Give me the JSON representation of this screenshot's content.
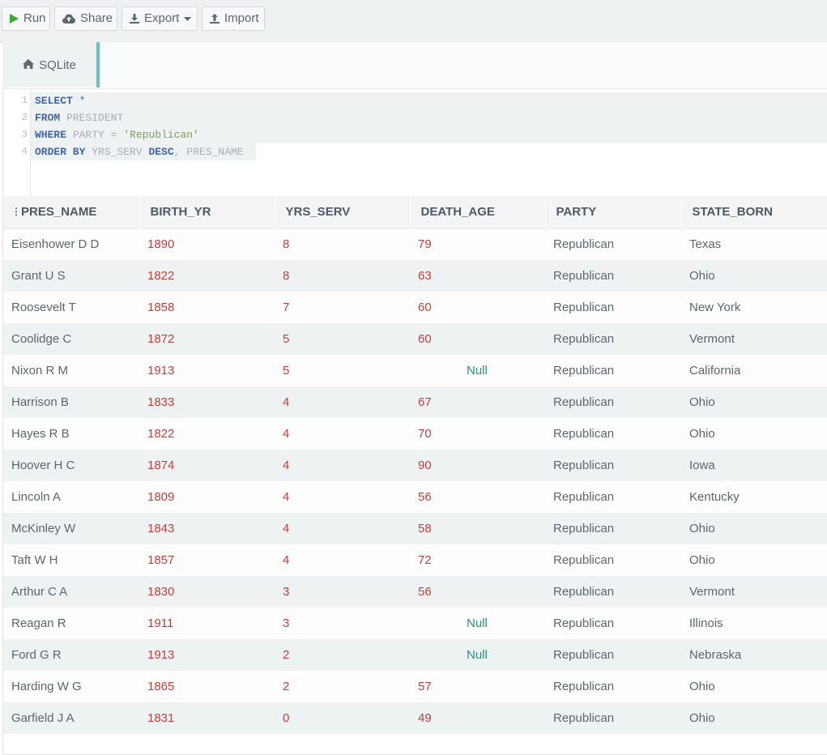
{
  "toolbar": {
    "run_label": "Run",
    "share_label": "Share",
    "export_label": "Export",
    "import_label": "Import"
  },
  "db_tab": {
    "label": "SQLite"
  },
  "editor": {
    "line_numbers": [
      "1",
      "2",
      "3",
      "4"
    ]
  },
  "table": {
    "columns": [
      "PRES_NAME",
      "BIRTH_YR",
      "YRS_SERV",
      "DEATH_AGE",
      "PARTY",
      "STATE_BORN"
    ],
    "rows": [
      [
        "Eisenhower D D",
        "1890",
        "8",
        "79",
        "Republican",
        "Texas"
      ],
      [
        "Grant U S",
        "1822",
        "8",
        "63",
        "Republican",
        "Ohio"
      ],
      [
        "Roosevelt T",
        "1858",
        "7",
        "60",
        "Republican",
        "New York"
      ],
      [
        "Coolidge C",
        "1872",
        "5",
        "60",
        "Republican",
        "Vermont"
      ],
      [
        "Nixon R M",
        "1913",
        "5",
        "Null",
        "Republican",
        "California"
      ],
      [
        "Harrison B",
        "1833",
        "4",
        "67",
        "Republican",
        "Ohio"
      ],
      [
        "Hayes R B",
        "1822",
        "4",
        "70",
        "Republican",
        "Ohio"
      ],
      [
        "Hoover H C",
        "1874",
        "4",
        "90",
        "Republican",
        "Iowa"
      ],
      [
        "Lincoln A",
        "1809",
        "4",
        "56",
        "Republican",
        "Kentucky"
      ],
      [
        "McKinley W",
        "1843",
        "4",
        "58",
        "Republican",
        "Ohio"
      ],
      [
        "Taft W H",
        "1857",
        "4",
        "72",
        "Republican",
        "Ohio"
      ],
      [
        "Arthur C A",
        "1830",
        "3",
        "56",
        "Republican",
        "Vermont"
      ],
      [
        "Reagan R",
        "1911",
        "3",
        "Null",
        "Republican",
        "Illinois"
      ],
      [
        "Ford G R",
        "1913",
        "2",
        "Null",
        "Republican",
        "Nebraska"
      ],
      [
        "Harding W G",
        "1865",
        "2",
        "57",
        "Republican",
        "Ohio"
      ],
      [
        "Garfield J A",
        "1831",
        "0",
        "49",
        "Republican",
        "Ohio"
      ]
    ]
  }
}
